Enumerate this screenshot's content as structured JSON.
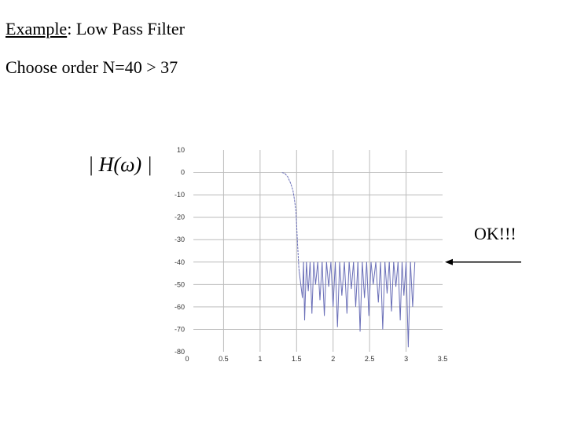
{
  "heading": {
    "underlined": "Example",
    "rest": ": Low Pass Filter"
  },
  "order_text": "Choose order N=40 > 37",
  "y_axis_label": "| H(ω) |",
  "annotation": "OK!!!",
  "colors": {
    "line": "#6a6fb8",
    "grid": "#bcbcbc",
    "arrow": "#000000"
  },
  "chart_data": {
    "type": "line",
    "title": "",
    "xlabel": "",
    "ylabel": "| H(ω) |",
    "xlim": [
      0,
      3.5
    ],
    "ylim": [
      -80,
      10
    ],
    "grid": true,
    "x_ticks": [
      0,
      0.5,
      1,
      1.5,
      2,
      2.5,
      3,
      3.5
    ],
    "x_tick_labels": [
      "0",
      "0.5",
      "1",
      "1.5",
      "2",
      "2.5",
      "3",
      "3.5"
    ],
    "y_ticks": [
      10,
      0,
      -10,
      -20,
      -30,
      -40,
      -50,
      -60,
      -70,
      -80
    ],
    "y_tick_labels": [
      "10",
      "0",
      "-10",
      "-20",
      "-30",
      "-40",
      "-50",
      "-60",
      "-70",
      "-80"
    ],
    "series": [
      {
        "x": [
          1.3,
          1.34,
          1.38,
          1.42,
          1.45,
          1.47,
          1.49,
          1.5,
          1.51,
          1.52,
          1.53,
          1.535
        ],
        "y": [
          0,
          -0.5,
          -2,
          -5,
          -8,
          -12,
          -17,
          -23,
          -30,
          -36,
          -42,
          -44
        ]
      }
    ],
    "stopband_dips": [
      {
        "x": 1.58,
        "y": -56
      },
      {
        "x": 1.61,
        "y": -66
      },
      {
        "x": 1.66,
        "y": -53
      },
      {
        "x": 1.71,
        "y": -63
      },
      {
        "x": 1.76,
        "y": -50
      },
      {
        "x": 1.82,
        "y": -57
      },
      {
        "x": 1.88,
        "y": -64
      },
      {
        "x": 1.94,
        "y": -51
      },
      {
        "x": 2.0,
        "y": -60
      },
      {
        "x": 2.06,
        "y": -69
      },
      {
        "x": 2.12,
        "y": -55
      },
      {
        "x": 2.19,
        "y": -63
      },
      {
        "x": 2.25,
        "y": -52
      },
      {
        "x": 2.31,
        "y": -60
      },
      {
        "x": 2.37,
        "y": -71
      },
      {
        "x": 2.43,
        "y": -56
      },
      {
        "x": 2.49,
        "y": -64
      },
      {
        "x": 2.55,
        "y": -50
      },
      {
        "x": 2.62,
        "y": -58
      },
      {
        "x": 2.68,
        "y": -70
      },
      {
        "x": 2.74,
        "y": -54
      },
      {
        "x": 2.8,
        "y": -62
      },
      {
        "x": 2.86,
        "y": -51
      },
      {
        "x": 2.92,
        "y": -66
      },
      {
        "x": 2.97,
        "y": -55
      },
      {
        "x": 3.03,
        "y": -78
      },
      {
        "x": 3.09,
        "y": -60
      }
    ],
    "stopband_peak": -40
  }
}
